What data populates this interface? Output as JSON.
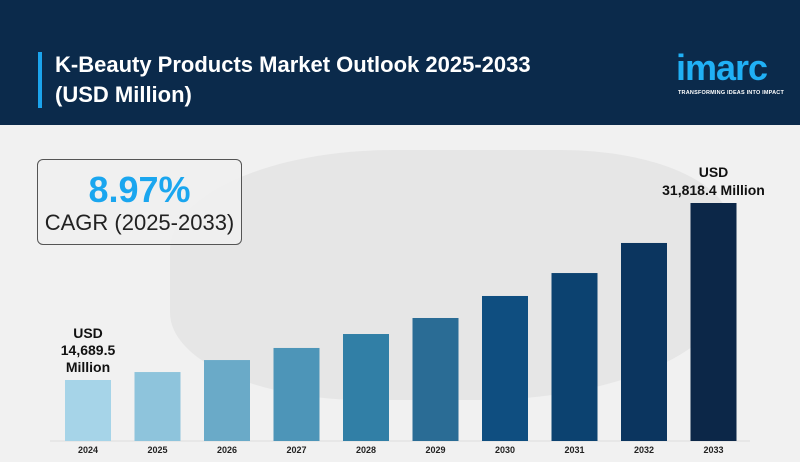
{
  "header": {
    "title": "K-Beauty Products Market Outlook 2025-2033 (USD Million)",
    "logo": "imarc",
    "tagline": "TRANSFORMING IDEAS INTO IMPACT"
  },
  "cagr": {
    "value": "8.97%",
    "label": "CAGR (2025-2033)"
  },
  "chart_data": {
    "type": "bar",
    "title": "K-Beauty Products Market Outlook 2025-2033 (USD Million)",
    "categories": [
      "2024",
      "2025",
      "2026",
      "2027",
      "2028",
      "2029",
      "2030",
      "2031",
      "2032",
      "2033"
    ],
    "values": [
      14689.5,
      15460,
      16620,
      17790,
      19140,
      20690,
      22820,
      25040,
      27950,
      31818.4
    ],
    "colors": [
      "#a6d4e8",
      "#8ec4dc",
      "#6aaac8",
      "#4d95b8",
      "#317fa6",
      "#2a6c95",
      "#0f4e80",
      "#0c4270",
      "#0b355f",
      "#0c2748"
    ],
    "annotations": [
      {
        "category": "2024",
        "lines": [
          "USD",
          "14,689.5",
          "Million"
        ]
      },
      {
        "category": "2033",
        "lines": [
          "USD",
          "31,818.4 Million"
        ]
      }
    ],
    "ylim": [
      8786,
      31818.4
    ],
    "grid": false
  }
}
